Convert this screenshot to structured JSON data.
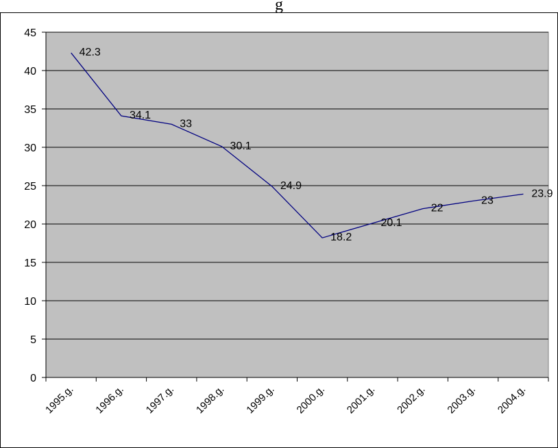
{
  "header": {
    "title_fragment": "g"
  },
  "chart_data": {
    "type": "line",
    "title": "",
    "xlabel": "",
    "ylabel": "",
    "categories": [
      "1995.g.",
      "1996.g.",
      "1997.g.",
      "1998.g.",
      "1999.g.",
      "2000.g.",
      "2001.g.",
      "2002.g.",
      "2003.g.",
      "2004.g."
    ],
    "series": [
      {
        "values": [
          42.3,
          34.1,
          33,
          30.1,
          24.9,
          18.2,
          20.1,
          22,
          23,
          23.9
        ],
        "labels": [
          "42.3",
          "34.1",
          "33",
          "30.1",
          "24.9",
          "18.2",
          "20.1",
          "22",
          "23",
          "23.9"
        ],
        "color": "#000080"
      }
    ],
    "ylim": [
      0,
      45
    ],
    "yticks": [
      "0",
      "5",
      "10",
      "15",
      "20",
      "25",
      "30",
      "35",
      "40",
      "45"
    ],
    "grid": true,
    "legend": "none",
    "plot_background": "#c0c0c0"
  }
}
